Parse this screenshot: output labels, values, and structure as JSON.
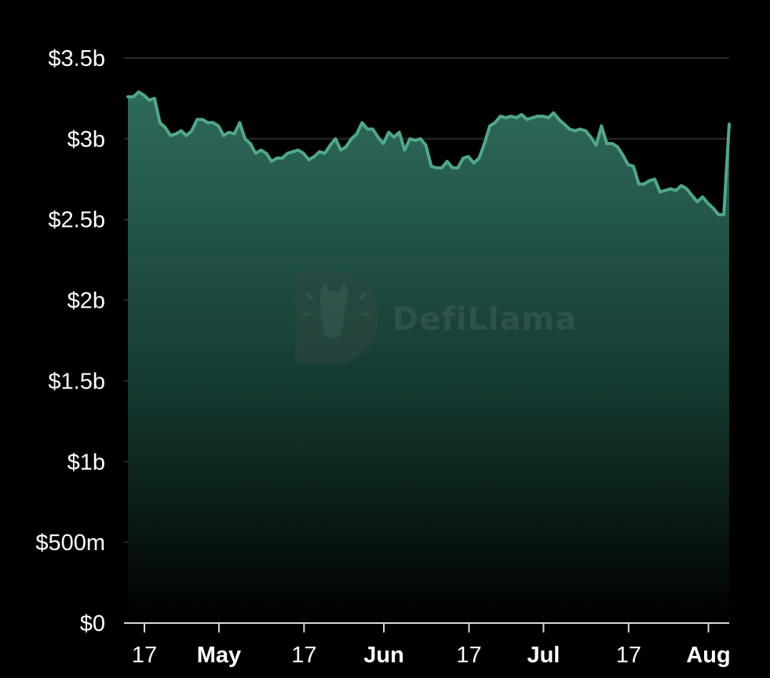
{
  "chart_data": {
    "type": "area",
    "x": [
      "2023-04-17",
      "2023-04-18",
      "2023-04-19",
      "2023-04-20",
      "2023-04-21",
      "2023-04-22",
      "2023-04-23",
      "2023-04-24",
      "2023-04-25",
      "2023-04-26",
      "2023-04-27",
      "2023-04-28",
      "2023-04-29",
      "2023-04-30",
      "2023-05-01",
      "2023-05-02",
      "2023-05-03",
      "2023-05-04",
      "2023-05-05",
      "2023-05-06",
      "2023-05-07",
      "2023-05-08",
      "2023-05-09",
      "2023-05-10",
      "2023-05-11",
      "2023-05-12",
      "2023-05-13",
      "2023-05-14",
      "2023-05-15",
      "2023-05-16",
      "2023-05-17",
      "2023-05-18",
      "2023-05-19",
      "2023-05-20",
      "2023-05-21",
      "2023-05-22",
      "2023-05-23",
      "2023-05-24",
      "2023-05-25",
      "2023-05-26",
      "2023-05-27",
      "2023-05-28",
      "2023-05-29",
      "2023-05-30",
      "2023-05-31",
      "2023-06-01",
      "2023-06-02",
      "2023-06-03",
      "2023-06-04",
      "2023-06-05",
      "2023-06-06",
      "2023-06-07",
      "2023-06-08",
      "2023-06-09",
      "2023-06-10",
      "2023-06-11",
      "2023-06-12",
      "2023-06-13",
      "2023-06-14",
      "2023-06-15",
      "2023-06-16",
      "2023-06-17",
      "2023-06-18",
      "2023-06-19",
      "2023-06-20",
      "2023-06-21",
      "2023-06-22",
      "2023-06-23",
      "2023-06-24",
      "2023-06-25",
      "2023-06-26",
      "2023-06-27",
      "2023-06-28",
      "2023-06-29",
      "2023-06-30",
      "2023-07-01",
      "2023-07-02",
      "2023-07-03",
      "2023-07-04",
      "2023-07-05",
      "2023-07-06",
      "2023-07-07",
      "2023-07-08",
      "2023-07-09",
      "2023-07-10",
      "2023-07-11",
      "2023-07-12",
      "2023-07-13",
      "2023-07-14",
      "2023-07-15",
      "2023-07-16",
      "2023-07-17",
      "2023-07-18",
      "2023-07-19",
      "2023-07-20",
      "2023-07-21",
      "2023-07-22",
      "2023-07-23",
      "2023-07-24",
      "2023-07-25",
      "2023-07-26",
      "2023-07-27",
      "2023-07-28",
      "2023-07-29",
      "2023-07-30",
      "2023-07-31",
      "2023-08-01",
      "2023-08-02",
      "2023-08-03",
      "2023-08-04",
      "2023-08-05",
      "2023-08-06",
      "2023-08-07",
      "2023-08-08"
    ],
    "values": [
      3.26,
      3.26,
      3.29,
      3.27,
      3.24,
      3.25,
      3.1,
      3.07,
      3.02,
      3.03,
      3.05,
      3.02,
      3.05,
      3.12,
      3.12,
      3.1,
      3.1,
      3.08,
      3.02,
      3.04,
      3.03,
      3.1,
      3.0,
      2.97,
      2.91,
      2.93,
      2.91,
      2.86,
      2.88,
      2.88,
      2.91,
      2.92,
      2.93,
      2.91,
      2.87,
      2.89,
      2.92,
      2.91,
      2.96,
      3.0,
      2.93,
      2.95,
      3.0,
      3.03,
      3.1,
      3.06,
      3.06,
      3.01,
      2.97,
      3.04,
      3.01,
      3.04,
      2.93,
      3.0,
      2.99,
      3.0,
      2.96,
      2.83,
      2.82,
      2.82,
      2.86,
      2.82,
      2.82,
      2.88,
      2.89,
      2.85,
      2.88,
      2.97,
      3.08,
      3.1,
      3.14,
      3.13,
      3.14,
      3.13,
      3.15,
      3.12,
      3.13,
      3.14,
      3.14,
      3.13,
      3.16,
      3.12,
      3.09,
      3.06,
      3.05,
      3.06,
      3.05,
      3.01,
      2.96,
      3.08,
      2.97,
      2.97,
      2.95,
      2.9,
      2.84,
      2.83,
      2.72,
      2.72,
      2.74,
      2.75,
      2.67,
      2.68,
      2.69,
      2.68,
      2.71,
      2.69,
      2.65,
      2.61,
      2.64,
      2.6,
      2.57,
      2.53,
      2.53,
      3.09
    ],
    "ylim": [
      0,
      3.5
    ],
    "yticks": [
      {
        "value": 3.5,
        "label": "$3.5b"
      },
      {
        "value": 3.0,
        "label": "$3b"
      },
      {
        "value": 2.5,
        "label": "$2.5b"
      },
      {
        "value": 2.0,
        "label": "$2b"
      },
      {
        "value": 1.5,
        "label": "$1.5b"
      },
      {
        "value": 1.0,
        "label": "$1b"
      },
      {
        "value": 0.5,
        "label": "$500m"
      },
      {
        "value": 0,
        "label": "$0"
      }
    ],
    "xticks": [
      {
        "date": "2023-04-17",
        "label": "17",
        "bold": false
      },
      {
        "date": "2023-05-01",
        "label": "May",
        "bold": true
      },
      {
        "date": "2023-05-17",
        "label": "17",
        "bold": false
      },
      {
        "date": "2023-06-01",
        "label": "Jun",
        "bold": true
      },
      {
        "date": "2023-06-17",
        "label": "17",
        "bold": false
      },
      {
        "date": "2023-07-01",
        "label": "Jul",
        "bold": true
      },
      {
        "date": "2023-07-17",
        "label": "17",
        "bold": false
      },
      {
        "date": "2023-08-01",
        "label": "Aug",
        "bold": true
      }
    ],
    "grid": true,
    "colors": {
      "line": "#4fa88c",
      "area_top": "#2e6b5c",
      "area_bottom": "#000000",
      "grid": "#2a2a2a",
      "axis": "#d9d9d9",
      "background": "#000000"
    }
  },
  "watermark": {
    "text": "DefiLlama",
    "icon": "llama-logo-icon"
  }
}
